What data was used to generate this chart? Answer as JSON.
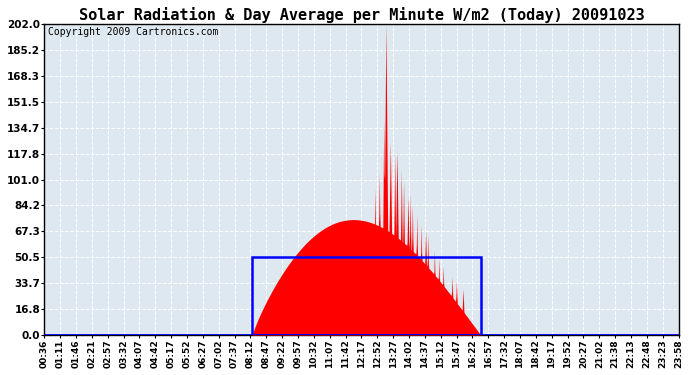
{
  "title": "Solar Radiation & Day Average per Minute W/m2 (Today) 20091023",
  "copyright": "Copyright 2009 Cartronics.com",
  "ymax": 202.0,
  "ytick_labels": [
    "0.0",
    "16.8",
    "33.7",
    "50.5",
    "67.3",
    "84.2",
    "101.0",
    "117.8",
    "134.7",
    "151.5",
    "168.3",
    "185.2",
    "202.0"
  ],
  "ytick_values": [
    0.0,
    16.8,
    33.7,
    50.5,
    67.3,
    84.2,
    101.0,
    117.8,
    134.7,
    151.5,
    168.3,
    185.2,
    202.0
  ],
  "background_color": "#ffffff",
  "plot_bg_color": "#dde8f0",
  "bar_color": "#ff0000",
  "avg_rect_color": "#0000ff",
  "grid_color": "#ffffff",
  "title_fontsize": 11,
  "copyright_fontsize": 7,
  "tick_fontsize": 6.5,
  "ytick_fontsize": 7.5,
  "n_minutes": 1440,
  "sunrise_idx": 472,
  "sunset_idx": 990,
  "avg_value": 50.5,
  "xtick_labels": [
    "00:36",
    "01:11",
    "01:46",
    "02:21",
    "02:57",
    "03:32",
    "04:07",
    "04:42",
    "05:17",
    "05:52",
    "06:27",
    "07:02",
    "07:37",
    "08:12",
    "08:47",
    "09:22",
    "09:57",
    "10:32",
    "11:07",
    "11:42",
    "12:17",
    "12:52",
    "13:27",
    "14:02",
    "14:37",
    "15:12",
    "15:47",
    "16:22",
    "16:57",
    "17:32",
    "18:07",
    "18:42",
    "19:17",
    "19:52",
    "20:27",
    "21:02",
    "21:38",
    "22:13",
    "22:48",
    "23:23",
    "23:58"
  ]
}
